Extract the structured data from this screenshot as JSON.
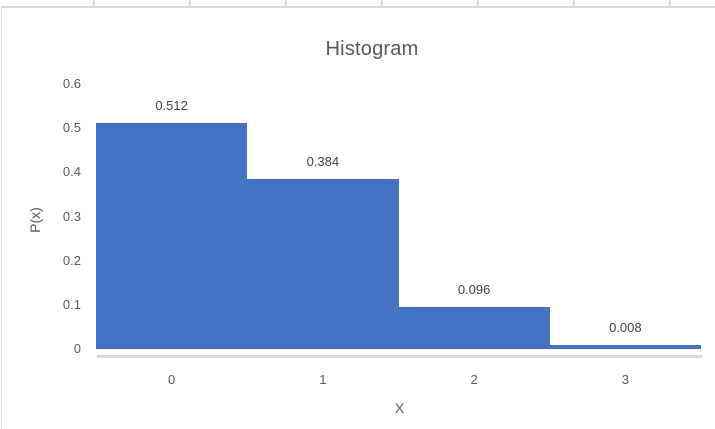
{
  "app": {
    "context_label": "Spreadsheet embedded chart"
  },
  "chart_data": {
    "type": "bar",
    "subtype": "histogram",
    "title": "Histogram",
    "xlabel": "X",
    "ylabel": "P(x)",
    "categories": [
      "0",
      "1",
      "2",
      "3"
    ],
    "values": [
      0.512,
      0.384,
      0.096,
      0.008
    ],
    "value_labels": [
      "0.512",
      "0.384",
      "0.096",
      "0.008"
    ],
    "ylim": [
      0,
      0.6
    ],
    "yticks": [
      0,
      0.1,
      0.2,
      0.3,
      0.4,
      0.5,
      0.6
    ],
    "ytick_labels": [
      "0",
      "0.1",
      "0.2",
      "0.3",
      "0.4",
      "0.5",
      "0.6"
    ],
    "bar_gap": 0,
    "grid": false,
    "legend": false,
    "data_label_position": "outside-end",
    "colors": {
      "bar": "#4472c4",
      "title_text": "#595959",
      "axis_text": "#595959",
      "data_label_text": "#404040",
      "axis_line": "#d9d9d9",
      "frame_border": "#d9d9d9",
      "cell_gridline": "#d2d2d2",
      "background": "#ffffff"
    }
  }
}
